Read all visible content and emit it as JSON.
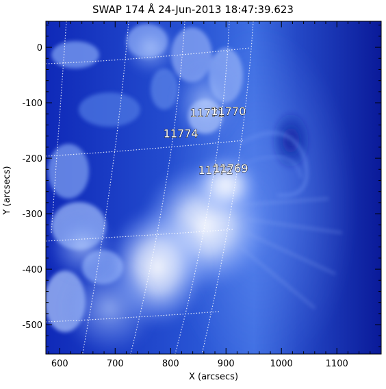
{
  "title": "SWAP 174 Å 24-Jun-2013 18:47:39.623",
  "xlabel": "X (arcsecs)",
  "ylabel": "Y (arcsecs)",
  "axes": {
    "xlim": [
      575,
      1180
    ],
    "ylim": [
      -553,
      47
    ],
    "xticks": [
      600,
      700,
      800,
      900,
      1000,
      1100
    ],
    "yticks": [
      0,
      -100,
      -200,
      -300,
      -400,
      -500
    ]
  },
  "labels": [
    {
      "text": "11771",
      "x": 835,
      "y": -125
    },
    {
      "text": "11770",
      "x": 873,
      "y": -122
    },
    {
      "text": "11774",
      "x": 787,
      "y": -162
    },
    {
      "text": "11772",
      "x": 850,
      "y": -228
    },
    {
      "text": "11769",
      "x": 877,
      "y": -225
    }
  ],
  "colors": {
    "dark": "#0a1a99",
    "mid": "#3a68e2",
    "light": "#a3c1ff",
    "bright": "#ffffff"
  }
}
